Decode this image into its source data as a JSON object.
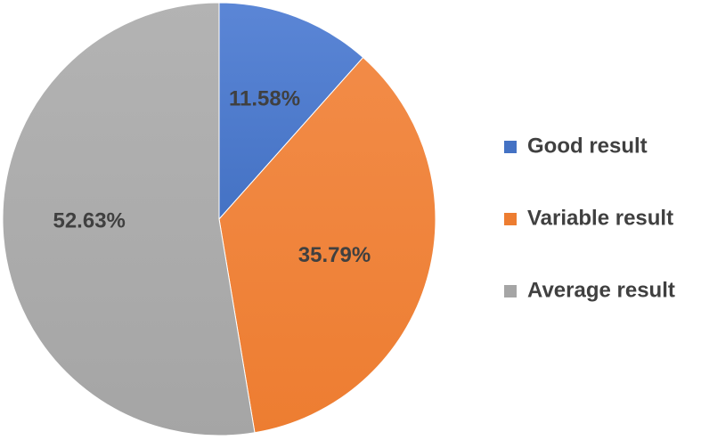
{
  "chart_data": {
    "type": "pie",
    "title": "",
    "slices": [
      {
        "label": "Good result",
        "value": 11.58,
        "display": "11.58%",
        "color": "#4472C4",
        "color_light": "#5B86D6"
      },
      {
        "label": "Variable result",
        "value": 35.79,
        "display": "35.79%",
        "color": "#ED7D31",
        "color_light": "#F28B47"
      },
      {
        "label": "Average result",
        "value": 52.63,
        "display": "52.63%",
        "color": "#A5A5A5",
        "color_light": "#B3B3B3"
      }
    ],
    "start_angle": "12 o'clock",
    "direction": "clockwise",
    "legend_position": "right"
  }
}
